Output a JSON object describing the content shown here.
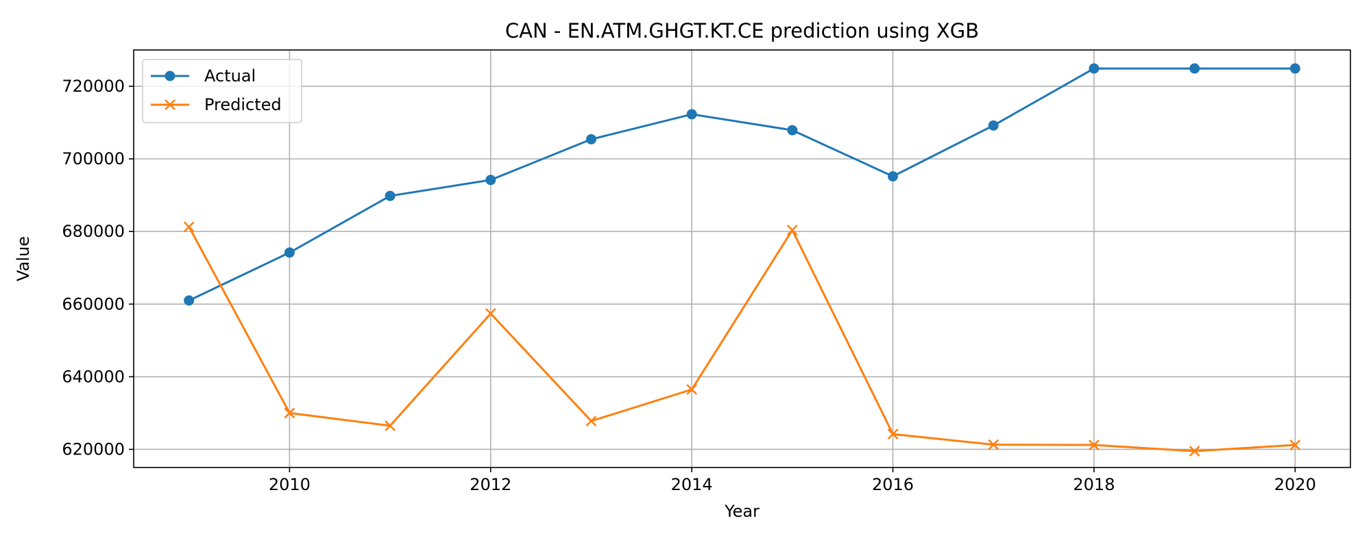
{
  "chart_data": {
    "type": "line",
    "title": "CAN - EN.ATM.GHGT.KT.CE prediction using XGB",
    "xlabel": "Year",
    "ylabel": "Value",
    "x": [
      2009,
      2010,
      2011,
      2012,
      2013,
      2014,
      2015,
      2016,
      2017,
      2018,
      2019,
      2020
    ],
    "xlim": [
      2008.45,
      2020.55
    ],
    "ylim": [
      615000,
      730000
    ],
    "x_ticks": [
      2010,
      2012,
      2014,
      2016,
      2018,
      2020
    ],
    "y_ticks": [
      620000,
      640000,
      660000,
      680000,
      700000,
      720000
    ],
    "grid": true,
    "legend_position": "upper-left",
    "series": [
      {
        "name": "Actual",
        "color": "#1f77b4",
        "marker": "circle",
        "values": [
          661000,
          674200,
          689800,
          694200,
          705400,
          712300,
          707900,
          695200,
          709200,
          724900,
          724900,
          724900
        ]
      },
      {
        "name": "Predicted",
        "color": "#ff7f0e",
        "marker": "x",
        "values": [
          681300,
          630000,
          626500,
          657400,
          627800,
          636500,
          680400,
          624200,
          621300,
          621200,
          619500,
          621200
        ]
      }
    ]
  }
}
